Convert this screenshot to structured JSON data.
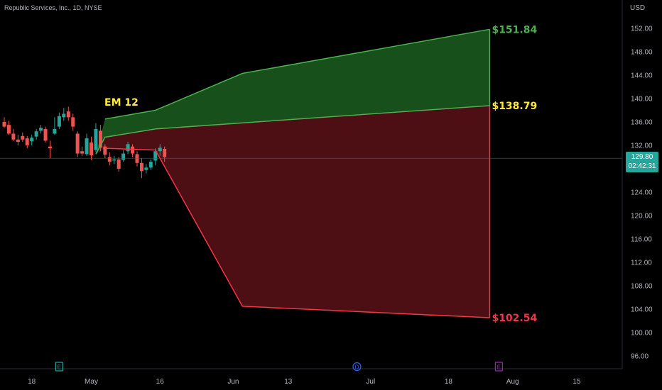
{
  "header": {
    "title": "Republic Services, Inc., 1D, NYSE"
  },
  "price_axis": {
    "currency": "USD"
  },
  "last_price": {
    "value": "129.80",
    "countdown": "02:42:31"
  },
  "annotations": {
    "em_label": "EM 12",
    "upper_target": "$151.84",
    "middle_target": "$138.79",
    "lower_target": "$102.54"
  },
  "colors": {
    "up": "#26a69a",
    "down": "#ef5350",
    "green_fill": "#1b5e20",
    "red_fill": "#5c1218",
    "green_line": "#4caf50",
    "red_line": "#f23645",
    "em_label": "#ffeb3b"
  },
  "event_markers": [
    {
      "letter": "E",
      "date": "2024-04-24",
      "color": "#26a69a"
    },
    {
      "letter": "D",
      "date": "2024-06-28",
      "color": "#2962ff"
    },
    {
      "letter": "E",
      "date": "2024-07-29",
      "color": "#9c27b0"
    }
  ],
  "chart_data": {
    "type": "candlestick",
    "title": "Republic Services, Inc., 1D, NYSE",
    "y_axis": {
      "label": "USD",
      "range": [
        92,
        155
      ],
      "ticks": [
        96,
        100,
        104,
        108,
        112,
        116,
        120,
        124,
        128,
        132,
        136,
        140,
        144,
        148,
        152
      ]
    },
    "x_axis": {
      "range": [
        "2024-04-12",
        "2024-08-24"
      ],
      "ticks": [
        {
          "label": "18",
          "date": "2024-04-18"
        },
        {
          "label": "May",
          "date": "2024-05-01"
        },
        {
          "label": "16",
          "date": "2024-05-16"
        },
        {
          "label": "Jun",
          "date": "2024-06-01"
        },
        {
          "label": "13",
          "date": "2024-06-13"
        },
        {
          "label": "Jul",
          "date": "2024-07-01"
        },
        {
          "label": "18",
          "date": "2024-07-18"
        },
        {
          "label": "Aug",
          "date": "2024-08-01"
        },
        {
          "label": "15",
          "date": "2024-08-15"
        }
      ]
    },
    "candles": [
      {
        "date": "2024-04-12",
        "o": 136.0,
        "h": 136.8,
        "l": 135.0,
        "c": 135.2
      },
      {
        "date": "2024-04-13",
        "o": 135.5,
        "h": 136.2,
        "l": 133.8,
        "c": 134.0
      },
      {
        "date": "2024-04-14",
        "o": 134.0,
        "h": 134.8,
        "l": 132.7,
        "c": 133.0
      },
      {
        "date": "2024-04-15",
        "o": 133.0,
        "h": 133.8,
        "l": 132.0,
        "c": 132.6
      },
      {
        "date": "2024-04-16",
        "o": 133.6,
        "h": 134.2,
        "l": 132.6,
        "c": 133.0
      },
      {
        "date": "2024-04-17",
        "o": 133.2,
        "h": 133.6,
        "l": 131.5,
        "c": 132.0
      },
      {
        "date": "2024-04-18",
        "o": 132.7,
        "h": 133.8,
        "l": 132.0,
        "c": 133.3
      },
      {
        "date": "2024-04-19",
        "o": 133.5,
        "h": 134.8,
        "l": 133.0,
        "c": 134.4
      },
      {
        "date": "2024-04-20",
        "o": 134.5,
        "h": 135.5,
        "l": 134.0,
        "c": 135.0
      },
      {
        "date": "2024-04-21",
        "o": 134.8,
        "h": 135.2,
        "l": 132.5,
        "c": 132.8
      },
      {
        "date": "2024-04-22",
        "o": 131.8,
        "h": 132.8,
        "l": 129.8,
        "c": 131.5
      },
      {
        "date": "2024-04-23",
        "o": 134.0,
        "h": 136.8,
        "l": 133.8,
        "c": 134.8
      },
      {
        "date": "2024-04-24",
        "o": 135.2,
        "h": 137.6,
        "l": 134.8,
        "c": 137.0
      },
      {
        "date": "2024-04-25",
        "o": 136.8,
        "h": 138.4,
        "l": 136.2,
        "c": 137.4
      },
      {
        "date": "2024-04-26",
        "o": 137.8,
        "h": 138.6,
        "l": 136.2,
        "c": 136.8
      },
      {
        "date": "2024-04-27",
        "o": 136.8,
        "h": 137.4,
        "l": 134.5,
        "c": 135.2
      },
      {
        "date": "2024-04-28",
        "o": 134.0,
        "h": 134.4,
        "l": 130.0,
        "c": 130.6
      },
      {
        "date": "2024-04-29",
        "o": 131.0,
        "h": 131.8,
        "l": 130.2,
        "c": 130.6
      },
      {
        "date": "2024-04-30",
        "o": 130.5,
        "h": 134.0,
        "l": 130.2,
        "c": 133.2
      },
      {
        "date": "2024-05-01",
        "o": 132.5,
        "h": 133.5,
        "l": 129.5,
        "c": 130.3
      },
      {
        "date": "2024-05-02",
        "o": 131.2,
        "h": 135.8,
        "l": 130.8,
        "c": 134.8
      },
      {
        "date": "2024-05-03",
        "o": 134.5,
        "h": 135.5,
        "l": 131.0,
        "c": 131.6
      },
      {
        "date": "2024-05-04",
        "o": 131.8,
        "h": 132.2,
        "l": 129.8,
        "c": 130.4
      },
      {
        "date": "2024-05-05",
        "o": 130.0,
        "h": 130.8,
        "l": 128.6,
        "c": 129.2
      },
      {
        "date": "2024-05-06",
        "o": 129.4,
        "h": 130.2,
        "l": 128.8,
        "c": 129.6
      },
      {
        "date": "2024-05-07",
        "o": 129.6,
        "h": 130.0,
        "l": 127.5,
        "c": 128.0
      },
      {
        "date": "2024-05-08",
        "o": 129.5,
        "h": 131.2,
        "l": 129.2,
        "c": 130.6
      },
      {
        "date": "2024-05-09",
        "o": 131.0,
        "h": 132.6,
        "l": 130.5,
        "c": 132.2
      },
      {
        "date": "2024-05-10",
        "o": 131.8,
        "h": 132.2,
        "l": 130.0,
        "c": 130.6
      },
      {
        "date": "2024-05-11",
        "o": 130.5,
        "h": 131.0,
        "l": 128.4,
        "c": 129.0
      },
      {
        "date": "2024-05-12",
        "o": 129.0,
        "h": 129.8,
        "l": 126.4,
        "c": 127.6
      },
      {
        "date": "2024-05-13",
        "o": 127.8,
        "h": 128.8,
        "l": 127.2,
        "c": 128.2
      },
      {
        "date": "2024-05-14",
        "o": 128.2,
        "h": 129.6,
        "l": 127.8,
        "c": 129.2
      },
      {
        "date": "2024-05-15",
        "o": 129.4,
        "h": 131.5,
        "l": 128.6,
        "c": 131.0
      },
      {
        "date": "2024-05-16",
        "o": 131.0,
        "h": 132.2,
        "l": 130.2,
        "c": 131.6
      },
      {
        "date": "2024-05-17",
        "o": 131.4,
        "h": 131.8,
        "l": 129.2,
        "c": 130.0
      }
    ],
    "overlays": {
      "em_label": "EM 12",
      "upper_line": [
        {
          "date": "2024-05-04",
          "value": 136.5
        },
        {
          "date": "2024-05-15",
          "value": 138.0
        },
        {
          "date": "2024-06-03",
          "value": 144.3
        },
        {
          "date": "2024-07-27",
          "value": 151.84
        }
      ],
      "middle_line": [
        {
          "date": "2024-05-02",
          "value": 130.5
        },
        {
          "date": "2024-05-04",
          "value": 133.4
        },
        {
          "date": "2024-05-15",
          "value": 134.8
        },
        {
          "date": "2024-07-27",
          "value": 138.79
        }
      ],
      "lower_line": [
        {
          "date": "2024-05-04",
          "value": 131.5
        },
        {
          "date": "2024-05-15",
          "value": 131.2
        },
        {
          "date": "2024-06-03",
          "value": 104.5
        },
        {
          "date": "2024-07-27",
          "value": 102.54
        }
      ],
      "target_labels": [
        {
          "text": "$151.84",
          "value": 151.84,
          "color": "#4caf50"
        },
        {
          "text": "$138.79",
          "value": 138.79,
          "color": "#ffeb3b"
        },
        {
          "text": "$102.54",
          "value": 102.54,
          "color": "#f23645"
        }
      ]
    },
    "last_price": 129.8
  }
}
